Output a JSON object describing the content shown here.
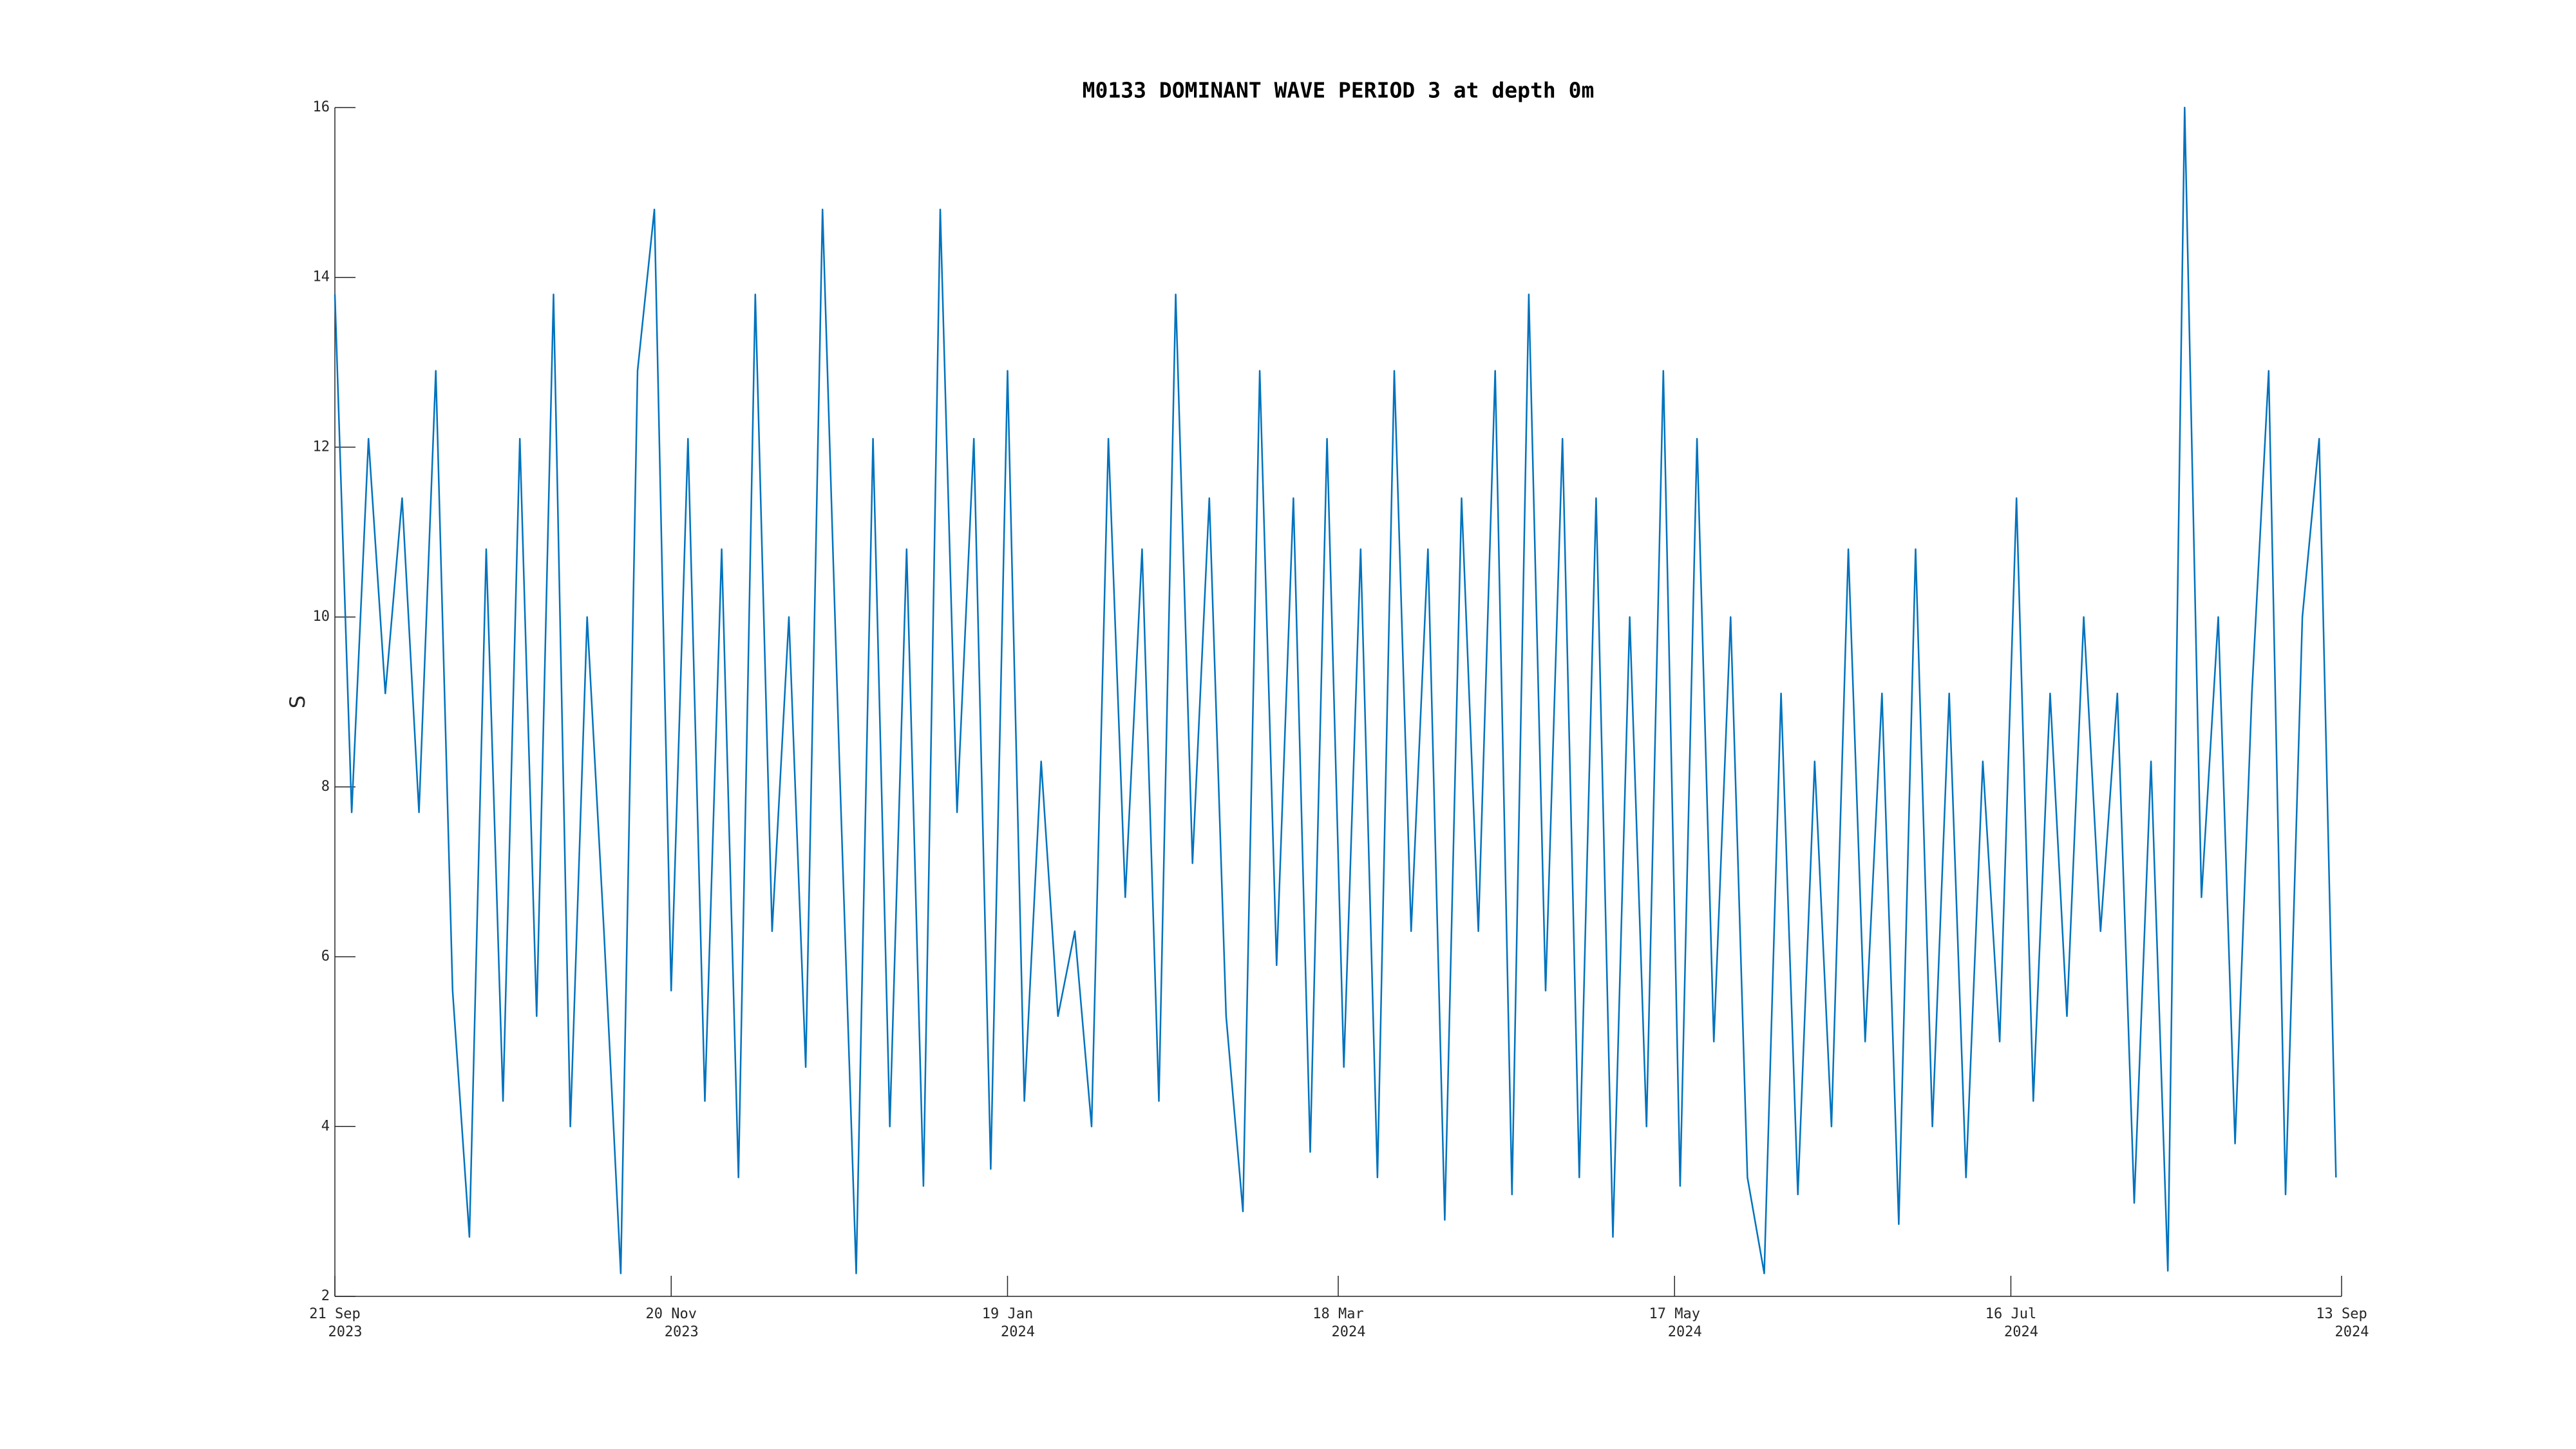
{
  "chart_data": {
    "type": "line",
    "title": "M0133 DOMINANT WAVE PERIOD 3 at depth 0m",
    "ylabel": "S",
    "x": [
      "2023-09-21",
      "2023-09-24",
      "2023-09-27",
      "2023-09-30",
      "2023-10-03",
      "2023-10-06",
      "2023-10-09",
      "2023-10-12",
      "2023-10-15",
      "2023-10-18",
      "2023-10-21",
      "2023-10-24",
      "2023-10-27",
      "2023-10-30",
      "2023-11-02",
      "2023-11-05",
      "2023-11-08",
      "2023-11-11",
      "2023-11-14",
      "2023-11-17",
      "2023-11-20",
      "2023-11-23",
      "2023-11-26",
      "2023-11-29",
      "2023-12-02",
      "2023-12-05",
      "2023-12-08",
      "2023-12-11",
      "2023-12-14",
      "2023-12-17",
      "2023-12-20",
      "2023-12-23",
      "2023-12-26",
      "2023-12-29",
      "2024-01-01",
      "2024-01-04",
      "2024-01-07",
      "2024-01-10",
      "2024-01-13",
      "2024-01-16",
      "2024-01-19",
      "2024-01-22",
      "2024-01-25",
      "2024-01-28",
      "2024-01-31",
      "2024-02-03",
      "2024-02-06",
      "2024-02-09",
      "2024-02-12",
      "2024-02-15",
      "2024-02-18",
      "2024-02-21",
      "2024-02-24",
      "2024-02-27",
      "2024-03-01",
      "2024-03-04",
      "2024-03-07",
      "2024-03-10",
      "2024-03-13",
      "2024-03-16",
      "2024-03-19",
      "2024-03-22",
      "2024-03-25",
      "2024-03-28",
      "2024-03-31",
      "2024-04-03",
      "2024-04-06",
      "2024-04-09",
      "2024-04-12",
      "2024-04-15",
      "2024-04-18",
      "2024-04-21",
      "2024-04-24",
      "2024-04-27",
      "2024-04-30",
      "2024-05-03",
      "2024-05-06",
      "2024-05-09",
      "2024-05-12",
      "2024-05-15",
      "2024-05-18",
      "2024-05-21",
      "2024-05-24",
      "2024-05-27",
      "2024-05-30",
      "2024-06-02",
      "2024-06-05",
      "2024-06-08",
      "2024-06-11",
      "2024-06-14",
      "2024-06-17",
      "2024-06-20",
      "2024-06-23",
      "2024-06-26",
      "2024-06-29",
      "2024-07-02",
      "2024-07-05",
      "2024-07-08",
      "2024-07-11",
      "2024-07-14",
      "2024-07-17",
      "2024-07-20",
      "2024-07-23",
      "2024-07-26",
      "2024-07-29",
      "2024-08-01",
      "2024-08-04",
      "2024-08-07",
      "2024-08-10",
      "2024-08-13",
      "2024-08-16",
      "2024-08-19",
      "2024-08-22",
      "2024-08-25",
      "2024-08-28",
      "2024-08-31",
      "2024-09-03",
      "2024-09-06",
      "2024-09-09",
      "2024-09-12"
    ],
    "series": [
      {
        "color": "#0072bd",
        "values": [
          13.8,
          7.7,
          12.1,
          9.1,
          11.4,
          7.7,
          12.9,
          5.6,
          2.7,
          10.8,
          4.3,
          12.1,
          5.3,
          13.8,
          4.0,
          10,
          6.3,
          2.27,
          12.9,
          14.8,
          5.6,
          12.1,
          4.3,
          10.8,
          3.4,
          13.8,
          6.3,
          10,
          4.7,
          14.8,
          8.3,
          2.27,
          12.1,
          4.0,
          10.8,
          3.3,
          14.8,
          7.7,
          12.1,
          3.5,
          12.9,
          4.3,
          8.3,
          5.3,
          6.3,
          4.0,
          12.1,
          6.7,
          10.8,
          4.3,
          13.8,
          7.1,
          11.4,
          5.3,
          3.0,
          12.9,
          5.9,
          11.4,
          3.7,
          12.1,
          4.7,
          10.8,
          3.4,
          12.9,
          6.3,
          10.8,
          2.9,
          11.4,
          6.3,
          12.9,
          3.2,
          13.8,
          5.6,
          12.1,
          3.4,
          11.4,
          2.7,
          10,
          4.0,
          12.9,
          3.3,
          12.1,
          5.0,
          10,
          3.4,
          2.27,
          9.1,
          3.2,
          8.3,
          4.0,
          10.8,
          5.0,
          9.1,
          2.85,
          10.8,
          4.0,
          9.1,
          3.4,
          8.3,
          5.0,
          11.4,
          4.3,
          9.1,
          5.3,
          10,
          6.3,
          9.1,
          3.1,
          8.3,
          2.3,
          16,
          6.7,
          10,
          3.8,
          9.1,
          12.9,
          3.2,
          10,
          12.1,
          3.4
        ]
      }
    ],
    "xlim": [
      "2023-09-21",
      "2024-09-13"
    ],
    "xticks": [
      {
        "value": "2023-09-21",
        "label": [
          "21 Sep",
          "2023"
        ]
      },
      {
        "value": "2023-11-20",
        "label": [
          "20 Nov",
          "2023"
        ]
      },
      {
        "value": "2024-01-19",
        "label": [
          "19 Jan",
          "2024"
        ]
      },
      {
        "value": "2024-03-18",
        "label": [
          "18 Mar",
          "2024"
        ]
      },
      {
        "value": "2024-05-17",
        "label": [
          "17 May",
          "2024"
        ]
      },
      {
        "value": "2024-07-16",
        "label": [
          "16 Jul",
          "2024"
        ]
      },
      {
        "value": "2024-09-13",
        "label": [
          "13 Sep",
          "2024"
        ]
      }
    ],
    "ylim": [
      2,
      16
    ],
    "yticks": [
      2,
      4,
      6,
      8,
      10,
      12,
      14,
      16
    ],
    "grid": false
  }
}
